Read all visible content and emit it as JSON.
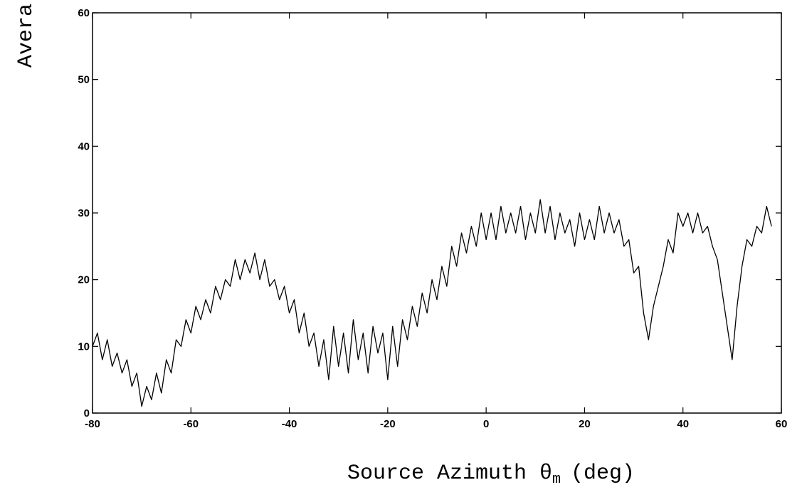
{
  "chart_data": {
    "type": "line",
    "ylabel": "Avera",
    "xlabel": {
      "main": "Source Azimuth θ",
      "sub": "m",
      "unit": "(deg)"
    },
    "xlim": [
      -80,
      60
    ],
    "ylim": [
      0,
      60
    ],
    "xticks": [
      -80,
      -60,
      -40,
      -20,
      0,
      20,
      40,
      60
    ],
    "yticks": [
      0,
      10,
      20,
      30,
      40,
      50,
      60
    ],
    "color": "#000000",
    "x": [
      -80,
      -79,
      -78,
      -77,
      -76,
      -75,
      -74,
      -73,
      -72,
      -71,
      -70,
      -69,
      -68,
      -67,
      -66,
      -65,
      -64,
      -63,
      -62,
      -61,
      -60,
      -59,
      -58,
      -57,
      -56,
      -55,
      -54,
      -53,
      -52,
      -51,
      -50,
      -49,
      -48,
      -47,
      -46,
      -45,
      -44,
      -43,
      -42,
      -41,
      -40,
      -39,
      -38,
      -37,
      -36,
      -35,
      -34,
      -33,
      -32,
      -31,
      -30,
      -29,
      -28,
      -27,
      -26,
      -25,
      -24,
      -23,
      -22,
      -21,
      -20,
      -19,
      -18,
      -17,
      -16,
      -15,
      -14,
      -13,
      -12,
      -11,
      -10,
      -9,
      -8,
      -7,
      -6,
      -5,
      -4,
      -3,
      -2,
      -1,
      0,
      1,
      2,
      3,
      4,
      5,
      6,
      7,
      8,
      9,
      10,
      11,
      12,
      13,
      14,
      15,
      16,
      17,
      18,
      19,
      20,
      21,
      22,
      23,
      24,
      25,
      26,
      27,
      28,
      29,
      30,
      31,
      32,
      33,
      34,
      35,
      36,
      37,
      38,
      39,
      40,
      41,
      42,
      43,
      44,
      45,
      46,
      47,
      48,
      49,
      50,
      51,
      52,
      53,
      54,
      55,
      56,
      57,
      58
    ],
    "values": [
      10,
      12,
      8,
      11,
      7,
      9,
      6,
      8,
      4,
      6,
      1,
      4,
      2,
      6,
      3,
      8,
      6,
      11,
      10,
      14,
      12,
      16,
      14,
      17,
      15,
      19,
      17,
      20,
      19,
      23,
      20,
      23,
      21,
      24,
      20,
      23,
      19,
      20,
      17,
      19,
      15,
      17,
      12,
      15,
      10,
      12,
      7,
      11,
      5,
      13,
      7,
      12,
      6,
      14,
      8,
      12,
      6,
      13,
      9,
      12,
      5,
      13,
      7,
      14,
      11,
      16,
      13,
      18,
      15,
      20,
      17,
      22,
      19,
      25,
      22,
      27,
      24,
      28,
      25,
      30,
      26,
      30,
      26,
      31,
      27,
      30,
      27,
      31,
      26,
      30,
      27,
      32,
      27,
      31,
      26,
      30,
      27,
      29,
      25,
      30,
      26,
      29,
      26,
      31,
      27,
      30,
      27,
      29,
      25,
      26,
      21,
      22,
      15,
      11,
      16,
      19,
      22,
      26,
      24,
      30,
      28,
      30,
      27,
      30,
      27,
      28,
      25,
      23,
      18,
      13,
      8,
      16,
      22,
      26,
      25,
      28,
      27,
      31,
      28
    ]
  }
}
